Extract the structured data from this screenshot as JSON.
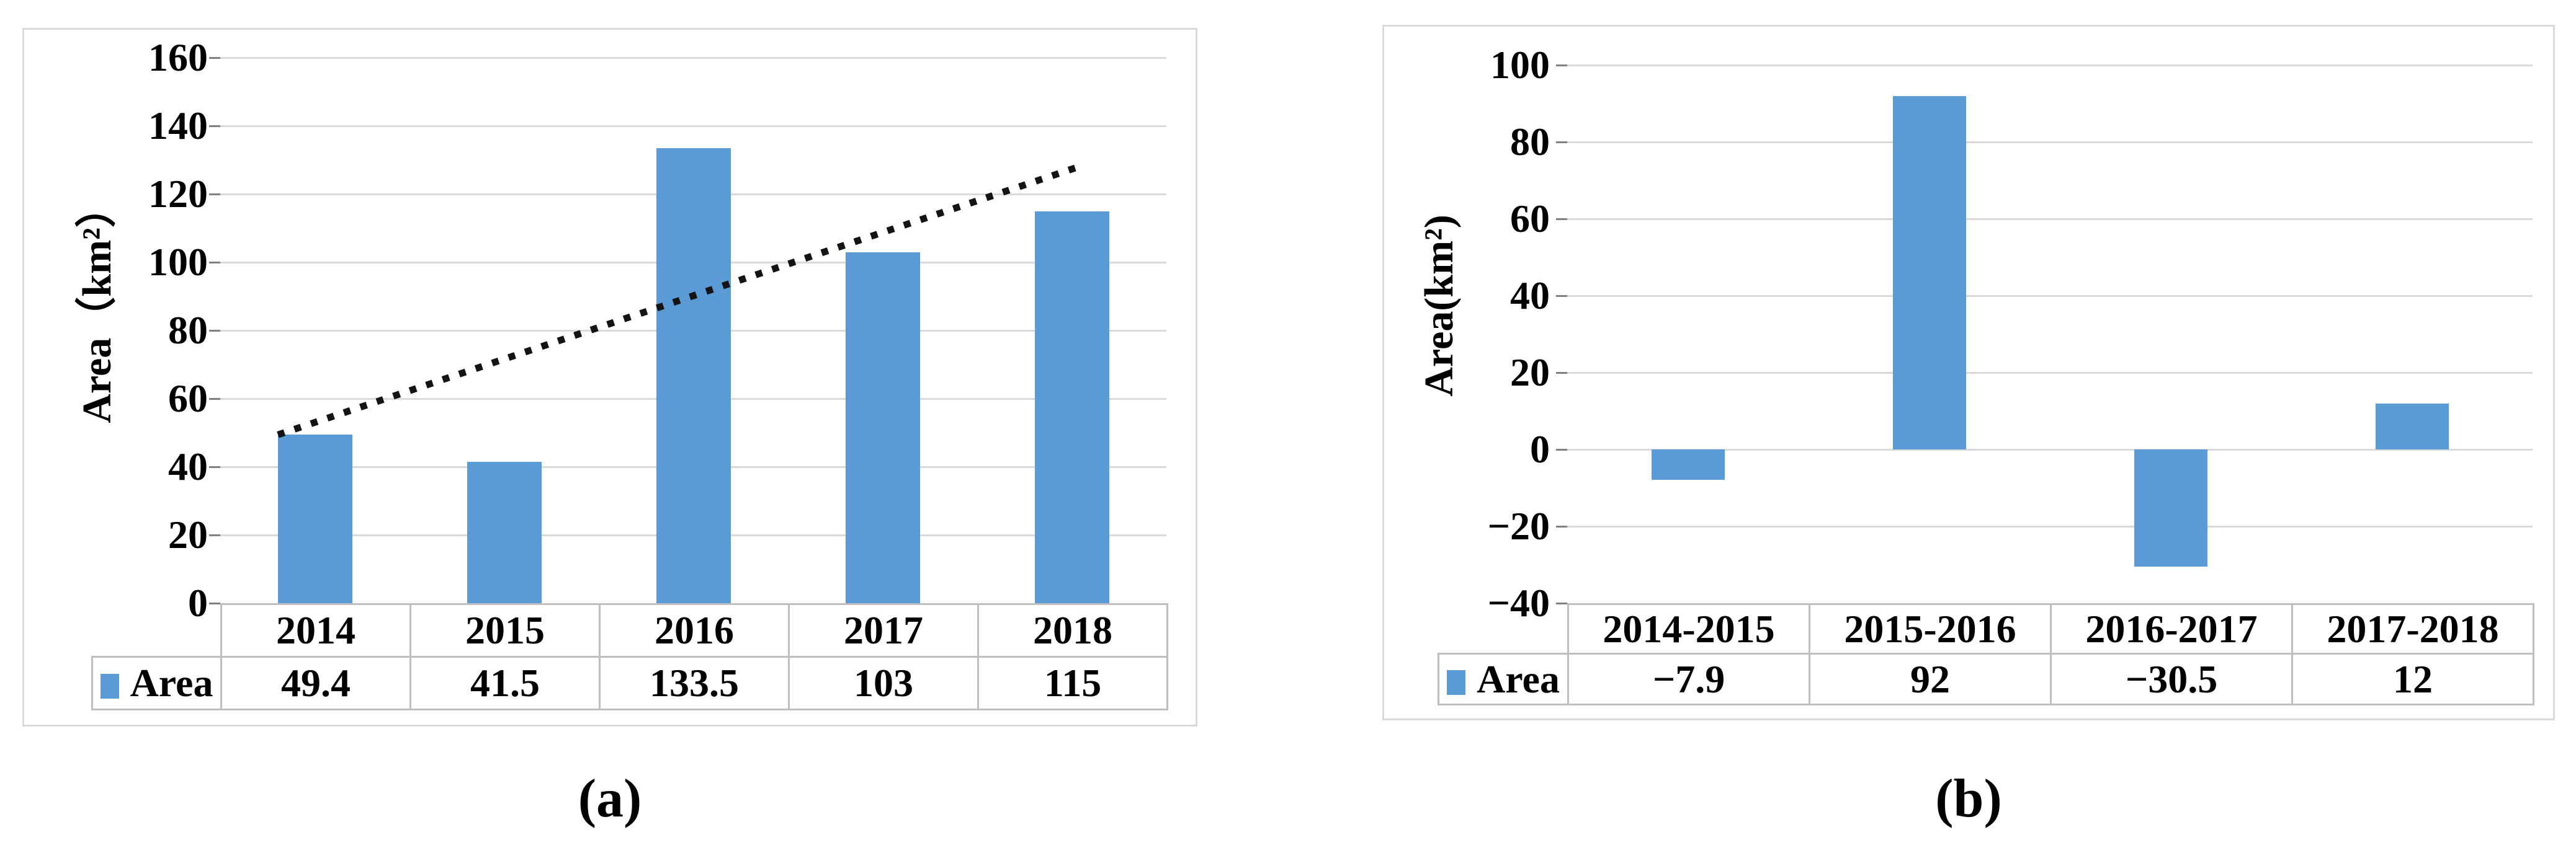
{
  "colors": {
    "bar_fill": "#5B9BD5",
    "gridline": "#D9D9D9",
    "tick_mark": "#808080",
    "table_border": "#BFBFBF",
    "panel_border": "#D9D9D9",
    "trendline": "#141414",
    "text": "#000000",
    "background": "#FFFFFF"
  },
  "chart_data": [
    {
      "type": "bar",
      "title": "",
      "ylabel": "Area（km²）",
      "xlabel": "",
      "categories": [
        "2014",
        "2015",
        "2016",
        "2017",
        "2018"
      ],
      "series": [
        {
          "name": "Area",
          "values": [
            49.4,
            41.5,
            133.5,
            103,
            115
          ]
        }
      ],
      "table_row_label": "Area",
      "table_values": [
        "49.4",
        "41.5",
        "133.5",
        "103",
        "115"
      ],
      "ylim": [
        0,
        160
      ],
      "ytick_step": 20,
      "yticks_top_to_bottom": [
        "160",
        "140",
        "120",
        "100",
        "80",
        "60",
        "40",
        "20",
        "0"
      ],
      "grid": true,
      "legend_position": "table-left",
      "trendline": {
        "style": "dotted",
        "v1": 49.4,
        "v2": 128,
        "x1_frac": 0.061,
        "x2_frac": 0.9075
      },
      "caption": "(a)"
    },
    {
      "type": "bar",
      "title": "",
      "ylabel": "Area(km²)",
      "xlabel": "",
      "categories": [
        "2014-2015",
        "2015-2016",
        "2016-2017",
        "2017-2018"
      ],
      "series": [
        {
          "name": "Area",
          "values": [
            -7.9,
            92,
            -30.5,
            12
          ]
        }
      ],
      "table_row_label": "Area",
      "table_values": [
        "−7.9",
        "92",
        "−30.5",
        "12"
      ],
      "ylim": [
        -40,
        100
      ],
      "ytick_step": 20,
      "yticks_top_to_bottom": [
        "100",
        "80",
        "60",
        "40",
        "20",
        "0",
        "−20",
        "−40"
      ],
      "grid": true,
      "legend_position": "table-left",
      "caption": "(b)"
    }
  ]
}
